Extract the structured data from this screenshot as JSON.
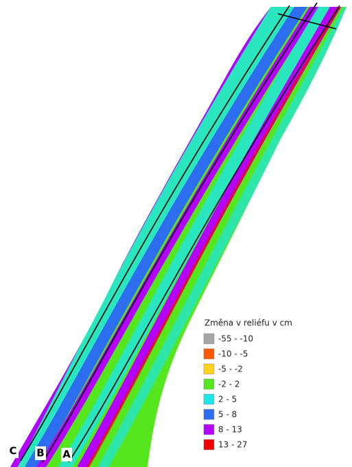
{
  "legend": {
    "title": "Změna v reliéfu v cm",
    "items": [
      {
        "label": "-55 - -10",
        "color": "#a6a6a6"
      },
      {
        "label": "-10 - -5",
        "color": "#ff5a00"
      },
      {
        "label": "-5 - -2",
        "color": "#ffd21e"
      },
      {
        "label": "-2 - 2",
        "color": "#55e61e"
      },
      {
        "label": "2 - 5",
        "color": "#1ee6e6"
      },
      {
        "label": "5 - 8",
        "color": "#2d6ef0"
      },
      {
        "label": "8 - 13",
        "color": "#b400ff"
      },
      {
        "label": "13 - 27",
        "color": "#f00000"
      }
    ]
  },
  "line_labels": [
    "C",
    "B",
    "A"
  ]
}
